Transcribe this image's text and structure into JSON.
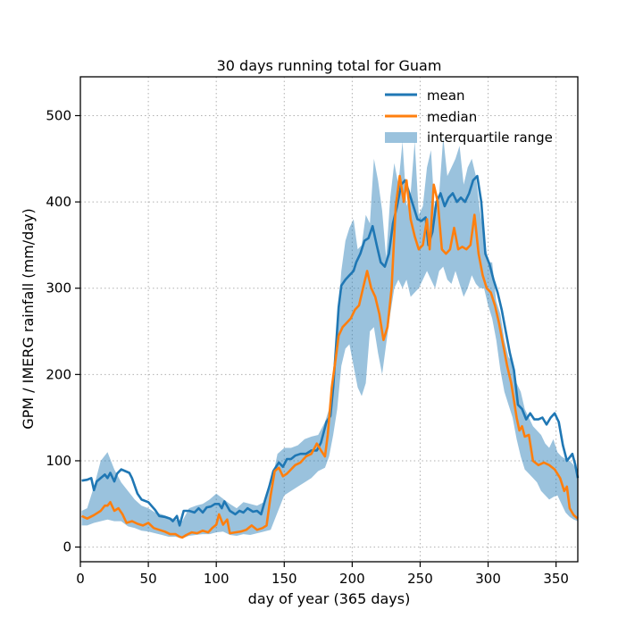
{
  "chart_data": {
    "type": "line",
    "title": "30 days running total for Guam",
    "xlabel": "day of year (365 days)",
    "ylabel": "GPM / IMERG rainfall (mm/day)",
    "xlim": [
      0,
      366
    ],
    "ylim": [
      -17,
      545
    ],
    "xticks": [
      0,
      50,
      100,
      150,
      200,
      250,
      300,
      350
    ],
    "yticks": [
      0,
      100,
      200,
      300,
      400,
      500
    ],
    "grid": true,
    "legend_position": "top-right",
    "series": [
      {
        "name": "mean",
        "color": "#1f77b4",
        "points": [
          [
            1,
            77
          ],
          [
            5,
            78
          ],
          [
            8,
            80
          ],
          [
            10,
            66
          ],
          [
            12,
            76
          ],
          [
            15,
            80
          ],
          [
            18,
            84
          ],
          [
            20,
            80
          ],
          [
            22,
            86
          ],
          [
            25,
            76
          ],
          [
            27,
            85
          ],
          [
            30,
            90
          ],
          [
            33,
            88
          ],
          [
            36,
            86
          ],
          [
            38,
            80
          ],
          [
            42,
            62
          ],
          [
            45,
            55
          ],
          [
            50,
            52
          ],
          [
            55,
            43
          ],
          [
            58,
            36
          ],
          [
            62,
            35
          ],
          [
            66,
            33
          ],
          [
            68,
            30
          ],
          [
            71,
            36
          ],
          [
            73,
            25
          ],
          [
            76,
            42
          ],
          [
            80,
            42
          ],
          [
            84,
            40
          ],
          [
            87,
            45
          ],
          [
            90,
            40
          ],
          [
            93,
            46
          ],
          [
            96,
            47
          ],
          [
            99,
            50
          ],
          [
            102,
            50
          ],
          [
            104,
            45
          ],
          [
            106,
            53
          ],
          [
            110,
            42
          ],
          [
            114,
            38
          ],
          [
            117,
            42
          ],
          [
            120,
            40
          ],
          [
            123,
            45
          ],
          [
            127,
            41
          ],
          [
            130,
            42
          ],
          [
            133,
            38
          ],
          [
            136,
            55
          ],
          [
            139,
            70
          ],
          [
            142,
            88
          ],
          [
            146,
            98
          ],
          [
            149,
            93
          ],
          [
            152,
            102
          ],
          [
            155,
            102
          ],
          [
            158,
            106
          ],
          [
            162,
            108
          ],
          [
            166,
            108
          ],
          [
            170,
            112
          ],
          [
            174,
            112
          ],
          [
            177,
            121
          ],
          [
            181,
            145
          ],
          [
            184,
            152
          ],
          [
            186,
            185
          ],
          [
            188,
            230
          ],
          [
            190,
            278
          ],
          [
            192,
            303
          ],
          [
            195,
            310
          ],
          [
            198,
            315
          ],
          [
            201,
            320
          ],
          [
            203,
            330
          ],
          [
            206,
            340
          ],
          [
            209,
            355
          ],
          [
            212,
            358
          ],
          [
            215,
            372
          ],
          [
            218,
            350
          ],
          [
            221,
            330
          ],
          [
            224,
            325
          ],
          [
            227,
            340
          ],
          [
            230,
            375
          ],
          [
            233,
            395
          ],
          [
            236,
            420
          ],
          [
            239,
            425
          ],
          [
            242,
            410
          ],
          [
            245,
            395
          ],
          [
            248,
            380
          ],
          [
            251,
            378
          ],
          [
            254,
            382
          ],
          [
            256,
            350
          ],
          [
            259,
            365
          ],
          [
            262,
            400
          ],
          [
            265,
            410
          ],
          [
            268,
            395
          ],
          [
            271,
            405
          ],
          [
            274,
            410
          ],
          [
            277,
            400
          ],
          [
            280,
            405
          ],
          [
            283,
            400
          ],
          [
            286,
            410
          ],
          [
            289,
            425
          ],
          [
            292,
            430
          ],
          [
            295,
            400
          ],
          [
            298,
            340
          ],
          [
            301,
            328
          ],
          [
            304,
            310
          ],
          [
            307,
            295
          ],
          [
            310,
            275
          ],
          [
            313,
            250
          ],
          [
            316,
            225
          ],
          [
            319,
            205
          ],
          [
            322,
            165
          ],
          [
            325,
            160
          ],
          [
            328,
            148
          ],
          [
            331,
            155
          ],
          [
            334,
            148
          ],
          [
            337,
            148
          ],
          [
            340,
            150
          ],
          [
            343,
            142
          ],
          [
            346,
            150
          ],
          [
            349,
            155
          ],
          [
            352,
            145
          ],
          [
            355,
            118
          ],
          [
            358,
            100
          ],
          [
            362,
            108
          ],
          [
            364,
            96
          ],
          [
            366,
            80
          ]
        ]
      },
      {
        "name": "median",
        "color": "#ff7f0e",
        "points": [
          [
            1,
            36
          ],
          [
            5,
            33
          ],
          [
            10,
            37
          ],
          [
            15,
            42
          ],
          [
            18,
            48
          ],
          [
            20,
            48
          ],
          [
            22,
            52
          ],
          [
            25,
            42
          ],
          [
            28,
            45
          ],
          [
            31,
            38
          ],
          [
            34,
            28
          ],
          [
            38,
            30
          ],
          [
            42,
            27
          ],
          [
            46,
            25
          ],
          [
            50,
            28
          ],
          [
            54,
            22
          ],
          [
            58,
            20
          ],
          [
            62,
            18
          ],
          [
            66,
            15
          ],
          [
            70,
            15
          ],
          [
            73,
            12
          ],
          [
            75,
            11
          ],
          [
            78,
            14
          ],
          [
            82,
            17
          ],
          [
            86,
            16
          ],
          [
            90,
            19
          ],
          [
            94,
            17
          ],
          [
            97,
            22
          ],
          [
            100,
            26
          ],
          [
            102,
            38
          ],
          [
            105,
            26
          ],
          [
            108,
            32
          ],
          [
            110,
            16
          ],
          [
            114,
            17
          ],
          [
            118,
            18
          ],
          [
            122,
            20
          ],
          [
            126,
            25
          ],
          [
            130,
            20
          ],
          [
            134,
            22
          ],
          [
            137,
            25
          ],
          [
            140,
            60
          ],
          [
            143,
            88
          ],
          [
            146,
            92
          ],
          [
            149,
            82
          ],
          [
            152,
            85
          ],
          [
            155,
            90
          ],
          [
            158,
            95
          ],
          [
            162,
            98
          ],
          [
            166,
            105
          ],
          [
            170,
            108
          ],
          [
            174,
            120
          ],
          [
            177,
            112
          ],
          [
            180,
            105
          ],
          [
            182,
            130
          ],
          [
            185,
            185
          ],
          [
            188,
            220
          ],
          [
            190,
            245
          ],
          [
            193,
            255
          ],
          [
            196,
            260
          ],
          [
            199,
            265
          ],
          [
            202,
            275
          ],
          [
            205,
            280
          ],
          [
            208,
            300
          ],
          [
            211,
            320
          ],
          [
            214,
            300
          ],
          [
            217,
            290
          ],
          [
            220,
            270
          ],
          [
            223,
            240
          ],
          [
            226,
            255
          ],
          [
            229,
            300
          ],
          [
            232,
            395
          ],
          [
            235,
            430
          ],
          [
            238,
            400
          ],
          [
            240,
            425
          ],
          [
            243,
            380
          ],
          [
            246,
            360
          ],
          [
            249,
            345
          ],
          [
            252,
            350
          ],
          [
            255,
            380
          ],
          [
            257,
            345
          ],
          [
            260,
            420
          ],
          [
            263,
            400
          ],
          [
            266,
            345
          ],
          [
            269,
            340
          ],
          [
            272,
            345
          ],
          [
            275,
            370
          ],
          [
            278,
            345
          ],
          [
            281,
            348
          ],
          [
            284,
            345
          ],
          [
            287,
            350
          ],
          [
            290,
            385
          ],
          [
            293,
            340
          ],
          [
            296,
            315
          ],
          [
            299,
            300
          ],
          [
            302,
            295
          ],
          [
            305,
            280
          ],
          [
            308,
            260
          ],
          [
            311,
            235
          ],
          [
            314,
            210
          ],
          [
            317,
            190
          ],
          [
            319,
            170
          ],
          [
            321,
            150
          ],
          [
            323,
            135
          ],
          [
            325,
            140
          ],
          [
            327,
            128
          ],
          [
            330,
            130
          ],
          [
            333,
            100
          ],
          [
            337,
            95
          ],
          [
            341,
            98
          ],
          [
            345,
            95
          ],
          [
            349,
            90
          ],
          [
            353,
            80
          ],
          [
            356,
            65
          ],
          [
            358,
            70
          ],
          [
            360,
            45
          ],
          [
            363,
            37
          ],
          [
            366,
            33
          ]
        ]
      }
    ],
    "band": {
      "name": "interquartile range",
      "color": "#1f77b4",
      "opacity": 0.45,
      "x": [
        1,
        5,
        10,
        15,
        20,
        25,
        30,
        35,
        40,
        45,
        50,
        55,
        60,
        65,
        70,
        75,
        80,
        85,
        90,
        95,
        100,
        105,
        110,
        115,
        120,
        125,
        130,
        135,
        140,
        145,
        150,
        155,
        160,
        165,
        170,
        175,
        180,
        183,
        186,
        189,
        192,
        195,
        198,
        201,
        204,
        207,
        210,
        213,
        216,
        219,
        222,
        225,
        228,
        231,
        234,
        237,
        240,
        243,
        246,
        249,
        252,
        255,
        258,
        261,
        264,
        267,
        270,
        273,
        276,
        279,
        282,
        285,
        288,
        291,
        294,
        297,
        300,
        303,
        306,
        309,
        312,
        315,
        318,
        321,
        324,
        327,
        330,
        333,
        336,
        339,
        342,
        345,
        348,
        351,
        354,
        357,
        360,
        363,
        366
      ],
      "lower": [
        25,
        25,
        28,
        30,
        32,
        30,
        30,
        24,
        22,
        19,
        18,
        16,
        14,
        12,
        12,
        10,
        13,
        14,
        15,
        15,
        17,
        18,
        14,
        13,
        15,
        14,
        16,
        18,
        20,
        40,
        60,
        65,
        70,
        75,
        80,
        88,
        92,
        105,
        130,
        160,
        210,
        230,
        235,
        210,
        185,
        175,
        190,
        250,
        255,
        225,
        200,
        235,
        270,
        300,
        310,
        300,
        310,
        290,
        295,
        300,
        310,
        320,
        310,
        300,
        320,
        325,
        310,
        305,
        320,
        305,
        290,
        300,
        315,
        305,
        300,
        300,
        280,
        265,
        240,
        205,
        180,
        165,
        150,
        125,
        105,
        90,
        85,
        80,
        75,
        65,
        60,
        55,
        58,
        60,
        50,
        40,
        35,
        32,
        30
      ],
      "upper": [
        42,
        45,
        70,
        100,
        110,
        90,
        75,
        65,
        55,
        48,
        45,
        40,
        38,
        35,
        32,
        30,
        45,
        48,
        50,
        55,
        62,
        56,
        50,
        45,
        52,
        50,
        48,
        52,
        70,
        108,
        115,
        115,
        118,
        125,
        128,
        130,
        145,
        160,
        200,
        260,
        320,
        355,
        370,
        380,
        345,
        350,
        385,
        375,
        450,
        425,
        390,
        335,
        405,
        445,
        420,
        470,
        395,
        410,
        470,
        385,
        395,
        440,
        460,
        380,
        410,
        475,
        430,
        440,
        450,
        465,
        420,
        440,
        450,
        430,
        390,
        360,
        330,
        330,
        285,
        270,
        240,
        220,
        215,
        190,
        180,
        160,
        150,
        140,
        135,
        130,
        120,
        115,
        125,
        110,
        105,
        102,
        100,
        95,
        85
      ]
    }
  }
}
